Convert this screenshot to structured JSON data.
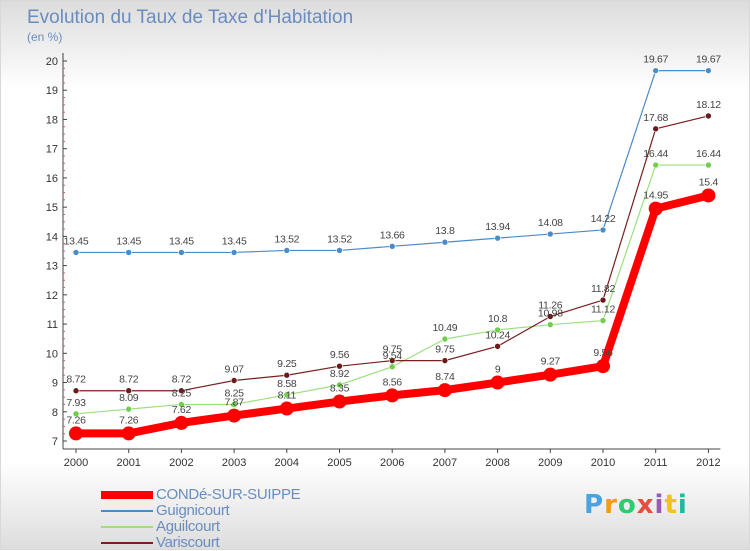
{
  "title": "Evolution du Taux de Taxe d'Habitation",
  "subtitle": "(en %)",
  "chart_data": {
    "type": "line",
    "x": [
      2000,
      2001,
      2002,
      2003,
      2004,
      2005,
      2006,
      2007,
      2008,
      2009,
      2010,
      2011,
      2012
    ],
    "ylim": [
      7,
      20
    ],
    "yticks": [
      7,
      8,
      9,
      10,
      11,
      12,
      13,
      14,
      15,
      16,
      17,
      18,
      19,
      20
    ],
    "grid": false,
    "legend": "bottom-left",
    "series": [
      {
        "name": "CONDé-SUR-SUIPPE",
        "color": "#ff0000",
        "values": [
          7.26,
          7.26,
          7.62,
          7.87,
          8.11,
          8.35,
          8.56,
          8.74,
          9,
          9.27,
          9.56,
          14.95,
          15.4
        ],
        "labels": [
          "7.26",
          "7.26",
          "7.62",
          "7.87",
          "8.11",
          "8.35",
          "8.56",
          "8.74",
          "9",
          "9.27",
          "9.56",
          "14.95",
          "15.4"
        ]
      },
      {
        "name": "Guignicourt",
        "color": "#5b9bd5",
        "values": [
          13.45,
          13.45,
          13.45,
          13.45,
          13.52,
          13.52,
          13.66,
          13.8,
          13.94,
          14.08,
          14.22,
          19.67,
          19.67
        ],
        "labels": [
          "13.45",
          "13.45",
          "13.45",
          "13.45",
          "13.52",
          "13.52",
          "13.66",
          "13.8",
          "13.94",
          "14.08",
          "14.22",
          "19.67",
          "19.67"
        ]
      },
      {
        "name": "Aguilcourt",
        "color": "#90e070",
        "values": [
          7.93,
          8.09,
          8.25,
          8.25,
          8.58,
          8.92,
          9.54,
          10.49,
          10.8,
          10.98,
          11.12,
          16.44,
          16.44
        ],
        "labels": [
          "7.93",
          "8.09",
          "8.25",
          "8.25",
          "8.58",
          "8.92",
          "9.54",
          "10.49",
          "10.8",
          "10.98",
          "11.12",
          "16.44",
          "16.44"
        ]
      },
      {
        "name": "Variscourt",
        "color": "#7a1f1f",
        "values": [
          8.72,
          8.72,
          8.72,
          9.07,
          9.25,
          9.56,
          9.75,
          9.75,
          10.24,
          11.26,
          11.82,
          17.68,
          18.12
        ],
        "labels": [
          "8.72",
          "8.72",
          "8.72",
          "9.07",
          "9.25",
          "9.56",
          "9.75",
          "9.75",
          "10.24",
          "11.26",
          "11.82",
          "17.68",
          "18.12"
        ]
      }
    ]
  },
  "brand": {
    "logo_letters": [
      "P",
      "r",
      "o",
      "x",
      "i",
      "t",
      "i"
    ],
    "logo_colors": [
      "#4aa3df",
      "#f39c12",
      "#2ecc71",
      "#e74c3c",
      "#9b59b6",
      "#f1c40f",
      "#1abc9c"
    ]
  }
}
